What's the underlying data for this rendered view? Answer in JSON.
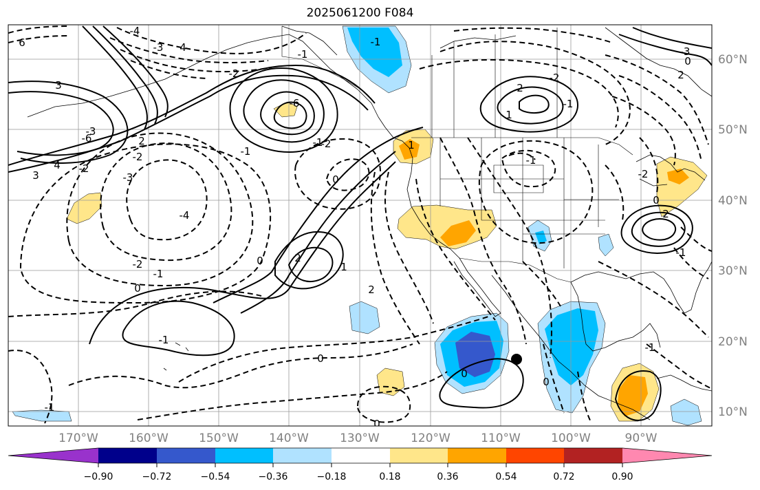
{
  "title": "2025061200 F084",
  "map": {
    "lat_labels": [
      "60°N",
      "50°N",
      "40°N",
      "30°N",
      "20°N",
      "10°N"
    ],
    "lon_labels": [
      "170°W",
      "160°W",
      "150°W",
      "140°W",
      "130°W",
      "120°W",
      "110°W",
      "100°W",
      "90°W"
    ],
    "contour_labels": [
      "6",
      "3",
      "4",
      "-1",
      "-2",
      "-3",
      "-4",
      "-2",
      "-6",
      "4",
      "3",
      "2",
      "-2",
      "-3",
      "-3",
      "-4",
      "-2",
      "-1",
      "0",
      "0",
      "-1",
      "2",
      "1",
      "-1",
      "0",
      "2",
      "-1",
      "1",
      "-2",
      "-1",
      "-6",
      "2",
      "1",
      "-2",
      "-1",
      "-1",
      "0",
      "0",
      "0",
      "2",
      "0",
      "-1",
      "0",
      "-3",
      "-2",
      "2",
      "-1",
      "-1",
      "0"
    ],
    "storm_marker": "storm-center-marker"
  },
  "colorbar": {
    "colors": [
      "#9932cc",
      "#00008b",
      "#3558cc",
      "#00bfff",
      "#b0e2ff",
      "#ffffff",
      "#ffe68a",
      "#ffa500",
      "#ff4500",
      "#b22222",
      "#ff88b0"
    ],
    "ticks": [
      "−0.90",
      "−0.72",
      "−0.54",
      "−0.36",
      "−0.18",
      "0.18",
      "0.36",
      "0.54",
      "0.72",
      "0.90"
    ]
  }
}
